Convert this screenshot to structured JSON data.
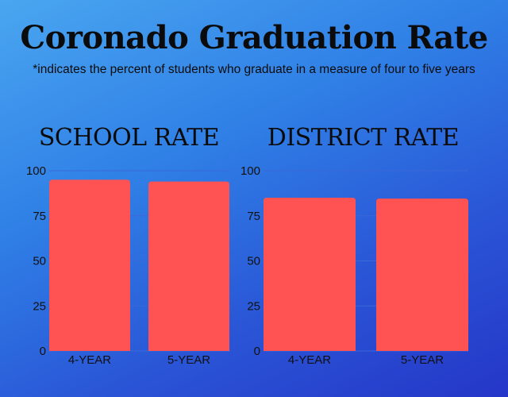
{
  "title": "Coronado Graduation Rate",
  "subtitle": "*indicates the percent of students who graduate in a measure of four to five years",
  "colors": {
    "bar": "#ff5252",
    "gridline": "#3a68d8"
  },
  "chart_data": [
    {
      "type": "bar",
      "title": "SCHOOL RATE",
      "categories": [
        "4-YEAR",
        "5-YEAR"
      ],
      "values": [
        95,
        94
      ],
      "ylim": [
        0,
        100
      ],
      "yticks": [
        0,
        25,
        50,
        75,
        100
      ],
      "xlabel": "",
      "ylabel": "",
      "grid": true
    },
    {
      "type": "bar",
      "title": "DISTRICT RATE",
      "categories": [
        "4-YEAR",
        "5-YEAR"
      ],
      "values": [
        85,
        84.5
      ],
      "ylim": [
        0,
        100
      ],
      "yticks": [
        0,
        25,
        50,
        75,
        100
      ],
      "xlabel": "",
      "ylabel": "",
      "grid": true
    }
  ]
}
